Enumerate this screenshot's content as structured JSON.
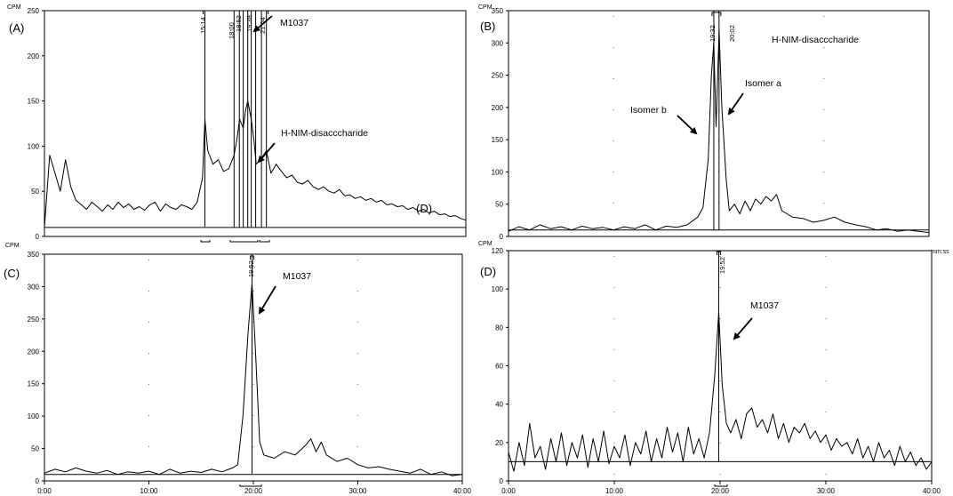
{
  "figure": {
    "colors": {
      "trace": "#000000",
      "frame": "#000000",
      "baseline": "#000000",
      "background": "#ffffff"
    },
    "arrow_icon": "arrow-icon"
  },
  "chart_data": [
    {
      "id": "A",
      "type": "line",
      "panel_label": "(A)",
      "ylabel": "CPM",
      "ylim": [
        0,
        250
      ],
      "yticks": [
        "0",
        "50",
        "100",
        "150",
        "200",
        "250"
      ],
      "xlim": [
        0,
        40
      ],
      "xticks": [],
      "xunit": "",
      "baseline": 10,
      "grid": false,
      "peak_labels": [
        "15:14",
        "18:00",
        "18:52",
        "19:38",
        "21:04"
      ],
      "peak_markers": [
        15.23,
        18.0,
        18.5,
        18.87,
        19.3,
        19.63,
        20.05,
        20.6,
        21.07
      ],
      "annotations": [
        "M1037",
        "H-NIM-disacccharide"
      ],
      "overlay_text": [
        "(D)"
      ],
      "series": [
        {
          "x": [
            0,
            0.5,
            1,
            1.5,
            2,
            2.5,
            3,
            3.5,
            4,
            4.5,
            5,
            5.5,
            6,
            6.5,
            7,
            7.5,
            8,
            8.5,
            9,
            9.5,
            10,
            10.5,
            11,
            11.5,
            12,
            12.5,
            13,
            13.5,
            14,
            14.5,
            15,
            15.23,
            15.5,
            16,
            16.5,
            17,
            17.5,
            18,
            18.3,
            18.52,
            18.87,
            19.1,
            19.3,
            19.63,
            19.9,
            20.1,
            20.5,
            21.07,
            21.5,
            22,
            22.5,
            23,
            23.5,
            24,
            24.5,
            25,
            25.5,
            26,
            26.5,
            27,
            27.5,
            28,
            28.5,
            29,
            29.5,
            30,
            30.5,
            31,
            31.5,
            32,
            32.5,
            33,
            33.5,
            34,
            34.5,
            35,
            35.5,
            36,
            36.5,
            37,
            37.5,
            38,
            38.5,
            39,
            39.5,
            40
          ],
          "y": [
            10,
            90,
            70,
            50,
            85,
            55,
            40,
            35,
            30,
            38,
            33,
            28,
            35,
            30,
            38,
            32,
            36,
            30,
            33,
            29,
            35,
            38,
            28,
            36,
            32,
            30,
            35,
            33,
            30,
            38,
            65,
            130,
            95,
            80,
            85,
            72,
            75,
            90,
            110,
            130,
            120,
            140,
            150,
            130,
            105,
            80,
            85,
            95,
            70,
            80,
            72,
            65,
            68,
            60,
            58,
            62,
            55,
            52,
            55,
            50,
            48,
            52,
            45,
            46,
            42,
            44,
            40,
            42,
            38,
            40,
            35,
            36,
            33,
            34,
            30,
            32,
            28,
            30,
            26,
            28,
            24,
            25,
            22,
            23,
            20,
            18
          ]
        }
      ]
    },
    {
      "id": "B",
      "type": "line",
      "panel_label": "(B)",
      "ylabel": "CPM",
      "ylim": [
        0,
        350
      ],
      "yticks": [
        "0",
        "50",
        "100",
        "150",
        "200",
        "250",
        "300",
        "350"
      ],
      "xlim": [
        0,
        40
      ],
      "xticks": [],
      "xunit": "mm:ss",
      "baseline": 10,
      "grid": true,
      "peak_labels": [
        "19:32",
        "20:02"
      ],
      "peak_markers": [
        19.53,
        20.03
      ],
      "annotations": [
        "H-NIM-disacccharide",
        "Isomer a",
        "Isomer b"
      ],
      "overlay_text": [],
      "series": [
        {
          "x": [
            0,
            1,
            2,
            3,
            4,
            5,
            6,
            7,
            8,
            9,
            10,
            11,
            12,
            13,
            14,
            15,
            16,
            17,
            18,
            18.5,
            19,
            19.3,
            19.53,
            19.75,
            20.03,
            20.3,
            20.7,
            21,
            21.5,
            22,
            22.5,
            23,
            23.5,
            24,
            24.5,
            25,
            25.5,
            26,
            27,
            28,
            29,
            30,
            31,
            32,
            33,
            34,
            35,
            36,
            37,
            38,
            39,
            40
          ],
          "y": [
            8,
            15,
            10,
            18,
            12,
            15,
            10,
            16,
            12,
            14,
            10,
            15,
            12,
            18,
            10,
            16,
            14,
            18,
            30,
            45,
            120,
            250,
            300,
            170,
            320,
            200,
            90,
            40,
            50,
            35,
            55,
            40,
            58,
            50,
            62,
            55,
            65,
            40,
            30,
            28,
            22,
            25,
            30,
            22,
            18,
            15,
            10,
            12,
            8,
            10,
            8,
            6
          ]
        }
      ]
    },
    {
      "id": "C",
      "type": "line",
      "panel_label": "(C)",
      "ylabel": "CPM",
      "ylim": [
        0,
        350
      ],
      "yticks": [
        "0",
        "50",
        "100",
        "150",
        "200",
        "250",
        "300",
        "350"
      ],
      "xlim": [
        0,
        40
      ],
      "xticks": [
        "0:00",
        "10:00",
        "20:00",
        "30:00",
        "40:00"
      ],
      "xunit": "",
      "baseline": 10,
      "grid": true,
      "peak_labels": [
        "19:52"
      ],
      "peak_markers": [
        19.87
      ],
      "annotations": [
        "M1037"
      ],
      "overlay_text": [],
      "series": [
        {
          "x": [
            0,
            1,
            2,
            3,
            4,
            5,
            6,
            7,
            8,
            9,
            10,
            11,
            12,
            13,
            14,
            15,
            16,
            17,
            18,
            18.5,
            19,
            19.5,
            19.87,
            20.2,
            20.6,
            21,
            22,
            23,
            24,
            25,
            25.5,
            26,
            26.5,
            27,
            28,
            29,
            30,
            31,
            32,
            33,
            34,
            35,
            36,
            37,
            38,
            39,
            40
          ],
          "y": [
            12,
            18,
            14,
            20,
            15,
            12,
            16,
            10,
            14,
            12,
            15,
            10,
            18,
            12,
            15,
            13,
            18,
            14,
            20,
            25,
            100,
            230,
            305,
            200,
            60,
            40,
            35,
            45,
            40,
            55,
            65,
            45,
            60,
            40,
            30,
            35,
            25,
            20,
            22,
            18,
            15,
            12,
            18,
            10,
            14,
            8,
            10
          ]
        }
      ]
    },
    {
      "id": "D",
      "type": "line",
      "panel_label": "(D)",
      "ylabel": "CPM",
      "ylim": [
        0,
        120
      ],
      "yticks": [
        "0",
        "20",
        "40",
        "60",
        "80",
        "100",
        "120"
      ],
      "xlim": [
        0,
        40
      ],
      "xticks": [
        "0:00",
        "10:00",
        "20:00",
        "30:00",
        "40:00"
      ],
      "xunit": "",
      "baseline": 10,
      "grid": true,
      "peak_labels": [
        "19:52"
      ],
      "peak_markers": [
        19.87
      ],
      "annotations": [
        "M1037"
      ],
      "overlay_text": [],
      "series": [
        {
          "x": [
            0,
            0.5,
            1,
            1.5,
            2,
            2.5,
            3,
            3.5,
            4,
            4.5,
            5,
            5.5,
            6,
            6.5,
            7,
            7.5,
            8,
            8.5,
            9,
            9.5,
            10,
            10.5,
            11,
            11.5,
            12,
            12.5,
            13,
            13.5,
            14,
            14.5,
            15,
            15.5,
            16,
            16.5,
            17,
            17.5,
            18,
            18.5,
            19,
            19.5,
            19.87,
            20.2,
            20.6,
            21,
            21.5,
            22,
            22.5,
            23,
            23.5,
            24,
            24.5,
            25,
            25.5,
            26,
            26.5,
            27,
            27.5,
            28,
            28.5,
            29,
            29.5,
            30,
            30.5,
            31,
            31.5,
            32,
            32.5,
            33,
            33.5,
            34,
            34.5,
            35,
            35.5,
            36,
            36.5,
            37,
            37.5,
            38,
            38.5,
            39,
            39.5,
            40
          ],
          "y": [
            15,
            5,
            20,
            8,
            30,
            12,
            18,
            6,
            22,
            10,
            25,
            8,
            20,
            12,
            24,
            7,
            22,
            10,
            26,
            9,
            18,
            12,
            24,
            8,
            20,
            14,
            26,
            10,
            22,
            12,
            28,
            15,
            25,
            10,
            28,
            14,
            22,
            12,
            25,
            55,
            88,
            50,
            30,
            25,
            32,
            22,
            35,
            38,
            28,
            32,
            25,
            35,
            22,
            30,
            20,
            28,
            25,
            30,
            22,
            26,
            20,
            24,
            16,
            22,
            18,
            20,
            14,
            22,
            12,
            18,
            10,
            20,
            12,
            16,
            8,
            18,
            10,
            15,
            8,
            12,
            6,
            10
          ]
        }
      ]
    }
  ]
}
